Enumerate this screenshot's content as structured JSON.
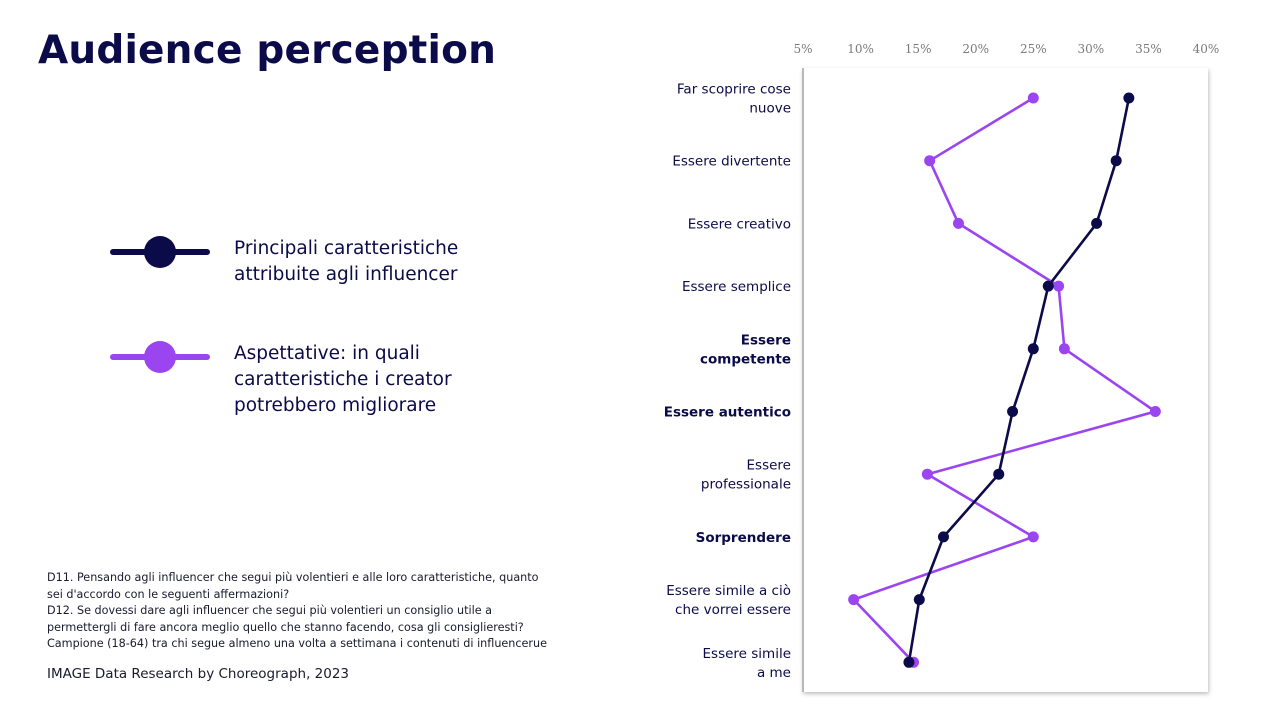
{
  "slide": {
    "title": "Audience perception",
    "notes": [
      "D11. Pensando agli influencer che segui più volentieri e alle loro caratteristiche, quanto",
      "sei d'accordo con le seguenti affermazioni?",
      "D12. Se dovessi dare agli influencer che segui più volentieri un consiglio utile a",
      "permettergli di fare ancora meglio quello che stanno facendo, cosa gli consiglieresti?",
      "Campione (18-64) tra chi segue almeno una volta a settimana i contenuti di influencerue"
    ],
    "source": "IMAGE Data Research by Choreograph, 2023"
  },
  "legend": [
    {
      "label": "Principali caratteristiche\nattribuite agli influencer",
      "color": "#0b0b4a"
    },
    {
      "label": "Aspettative: in quali\ncaratteristiche i creator\npotrebbero migliorare",
      "color": "#9b45f0"
    }
  ],
  "chart_data": {
    "type": "line",
    "orientation": "horizontal-values",
    "title": "",
    "xlabel": "",
    "ylabel": "",
    "xlim": [
      5,
      40
    ],
    "x_ticks": [
      "5%",
      "10%",
      "15%",
      "20%",
      "25%",
      "30%",
      "35%",
      "40%"
    ],
    "x_tick_values": [
      5,
      10,
      15,
      20,
      25,
      30,
      35,
      40
    ],
    "grid": false,
    "legend_position": "left",
    "categories": [
      {
        "label": [
          "Far scoprire cose",
          "nuove"
        ],
        "bold": false
      },
      {
        "label": [
          "Essere divertente"
        ],
        "bold": false
      },
      {
        "label": [
          "Essere creativo"
        ],
        "bold": false
      },
      {
        "label": [
          "Essere semplice"
        ],
        "bold": false
      },
      {
        "label": [
          "Essere",
          "competente"
        ],
        "bold": true
      },
      {
        "label": [
          "Essere autentico"
        ],
        "bold": true
      },
      {
        "label": [
          "Essere",
          "professionale"
        ],
        "bold": false
      },
      {
        "label": [
          "Sorprendere"
        ],
        "bold": true
      },
      {
        "label": [
          "Essere simile a ciò",
          "che vorrei essere"
        ],
        "bold": false
      },
      {
        "label": [
          "Essere simile",
          "a me"
        ],
        "bold": false
      }
    ],
    "series": [
      {
        "name": "Principali caratteristiche attribuite agli influencer",
        "color": "#0b0b4a",
        "values": [
          33.3,
          32.2,
          30.5,
          26.3,
          25.0,
          23.2,
          22.0,
          17.2,
          15.1,
          14.2
        ]
      },
      {
        "name": "Aspettative: in quali caratteristiche i creator potrebbero migliorare",
        "color": "#9b45f0",
        "values": [
          25.0,
          16.0,
          18.5,
          27.2,
          27.7,
          35.6,
          15.8,
          25.0,
          9.4,
          14.6
        ]
      }
    ],
    "gap_arrows": [
      {
        "category_index": 4,
        "color": "#f05a28"
      },
      {
        "category_index": 5,
        "color": "#f05a28"
      },
      {
        "category_index": 7,
        "color": "#f05a28"
      }
    ]
  }
}
